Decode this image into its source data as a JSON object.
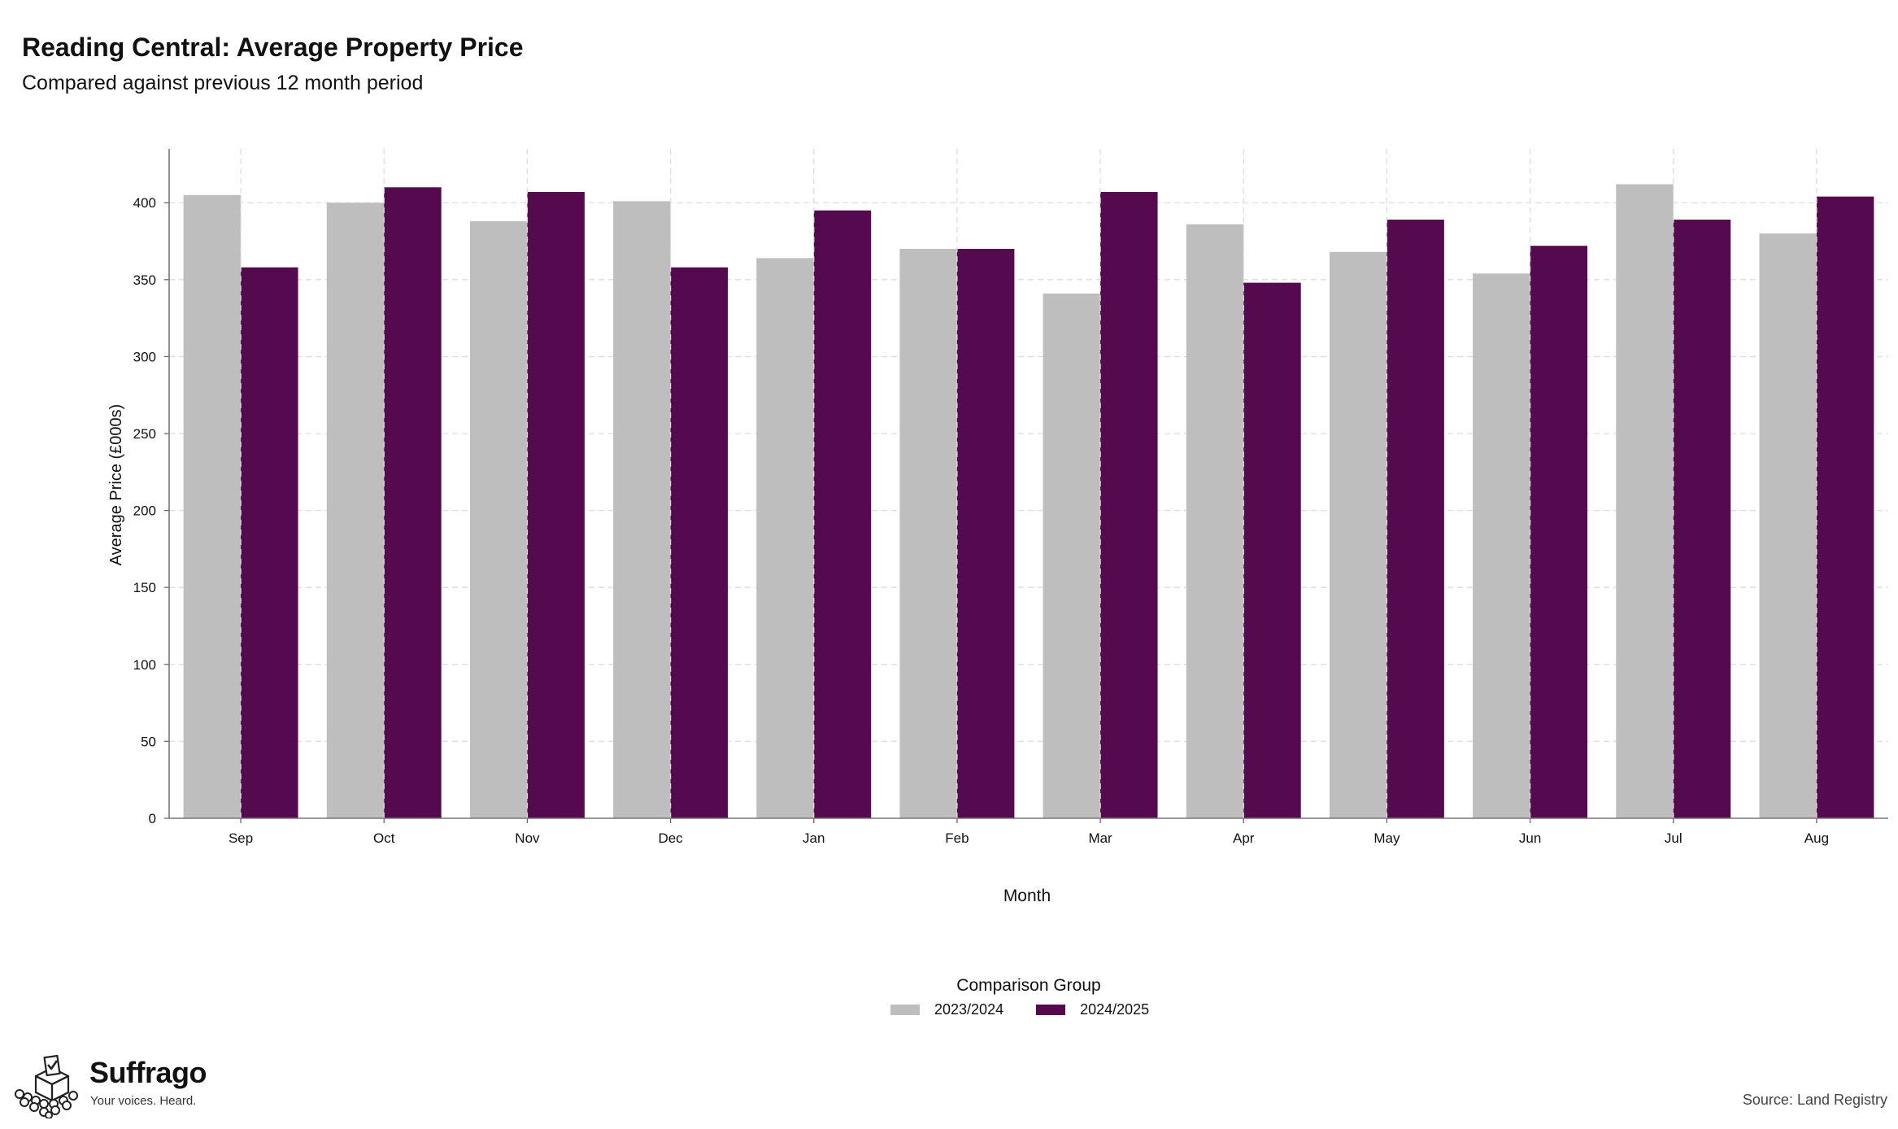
{
  "header": {
    "title": "Reading Central: Average Property Price",
    "subtitle": "Compared against previous 12 month period"
  },
  "chart_data": {
    "type": "bar",
    "xlabel": "Month",
    "ylabel": "Average Price (£000s)",
    "ylim": [
      0,
      435
    ],
    "yticks": [
      0,
      50,
      100,
      150,
      200,
      250,
      300,
      350,
      400
    ],
    "grid": true,
    "legend_title": "Comparison Group",
    "legend_placement": "bottom-center",
    "categories": [
      "Sep",
      "Oct",
      "Nov",
      "Dec",
      "Jan",
      "Feb",
      "Mar",
      "Apr",
      "May",
      "Jun",
      "Jul",
      "Aug"
    ],
    "series": [
      {
        "name": "2023/2024",
        "color": "#bebebe",
        "values": [
          405,
          400,
          388,
          401,
          364,
          370,
          341,
          386,
          368,
          354,
          412,
          380
        ]
      },
      {
        "name": "2024/2025",
        "color": "#550a50",
        "values": [
          358,
          410,
          407,
          358,
          395,
          370,
          407,
          348,
          389,
          372,
          389,
          404
        ]
      }
    ]
  },
  "footer": {
    "brand": "Suffrago",
    "tagline": "Your voices. Heard.",
    "source": "Source: Land Registry",
    "logo_icon": "ballot-box-icon"
  }
}
